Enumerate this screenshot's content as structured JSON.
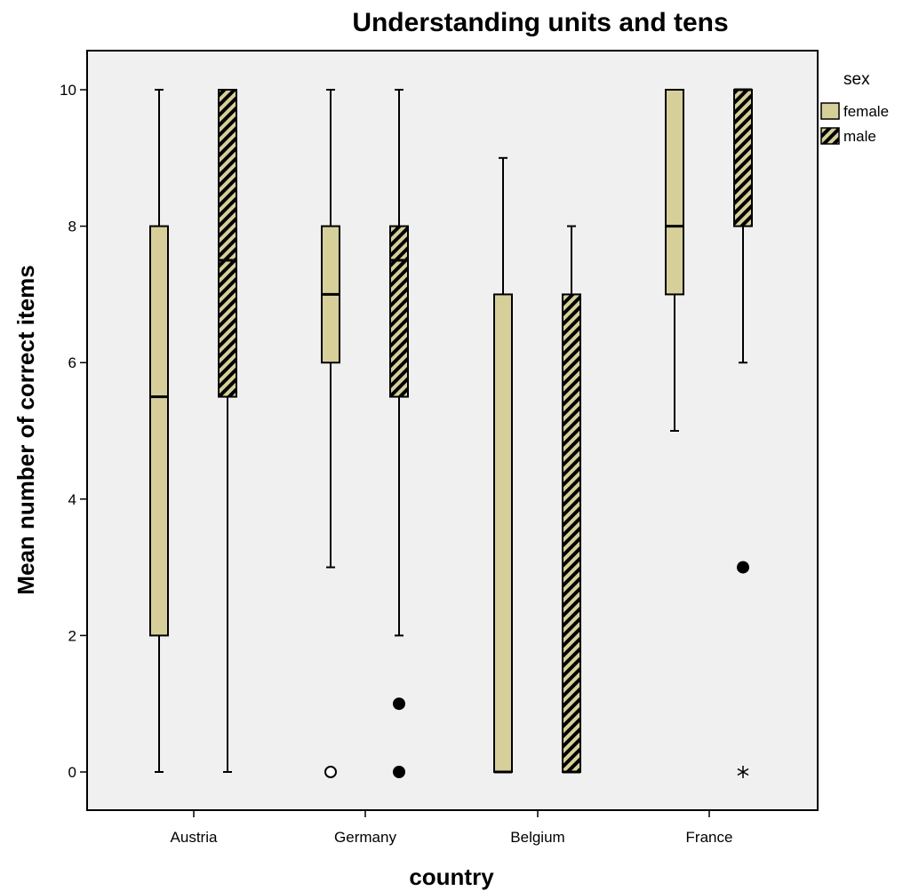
{
  "chart_data": {
    "type": "boxplot",
    "title": "Understanding units and tens",
    "xlabel": "country",
    "ylabel": "Mean number of correct items",
    "ylim": [
      -0.55,
      10.55
    ],
    "yticks": [
      0,
      2,
      4,
      6,
      8,
      10
    ],
    "categories": [
      "Austria",
      "Germany",
      "Belgium",
      "France"
    ],
    "legend": {
      "title": "sex",
      "placement": "right"
    },
    "colors": {
      "plot_bg": "#f0f0f0",
      "box_fill": "#d6cf9a",
      "outline": "#000000",
      "male_stripe": "#000000"
    },
    "series": [
      {
        "name": "female",
        "pattern": "solid",
        "boxes": [
          {
            "category": "Austria",
            "whisker_low": 0,
            "q1": 2,
            "median": 5.5,
            "q3": 8,
            "whisker_high": 10,
            "outliers": []
          },
          {
            "category": "Germany",
            "whisker_low": 3,
            "q1": 6,
            "median": 7,
            "q3": 8,
            "whisker_high": 10,
            "outliers": [
              {
                "value": 0,
                "marker": "open-circle"
              }
            ]
          },
          {
            "category": "Belgium",
            "whisker_low": 0,
            "q1": 0,
            "median": 0,
            "q3": 7,
            "whisker_high": 9,
            "outliers": []
          },
          {
            "category": "France",
            "whisker_low": 5,
            "q1": 7,
            "median": 8,
            "q3": 10,
            "whisker_high": 10,
            "outliers": []
          }
        ]
      },
      {
        "name": "male",
        "pattern": "hatched",
        "boxes": [
          {
            "category": "Austria",
            "whisker_low": 0,
            "q1": 5.5,
            "median": 7.5,
            "q3": 10,
            "whisker_high": 10,
            "outliers": []
          },
          {
            "category": "Germany",
            "whisker_low": 2,
            "q1": 5.5,
            "median": 7.5,
            "q3": 8,
            "whisker_high": 10,
            "outliers": [
              {
                "value": 1,
                "marker": "filled-circle"
              },
              {
                "value": 0,
                "marker": "filled-circle"
              }
            ]
          },
          {
            "category": "Belgium",
            "whisker_low": 0,
            "q1": 0,
            "median": 0,
            "q3": 7,
            "whisker_high": 8,
            "outliers": []
          },
          {
            "category": "France",
            "whisker_low": 6,
            "q1": 8,
            "median": 10,
            "q3": 10,
            "whisker_high": 10,
            "outliers": [
              {
                "value": 3,
                "marker": "filled-circle"
              },
              {
                "value": 0,
                "marker": "asterisk"
              }
            ]
          }
        ]
      }
    ]
  }
}
